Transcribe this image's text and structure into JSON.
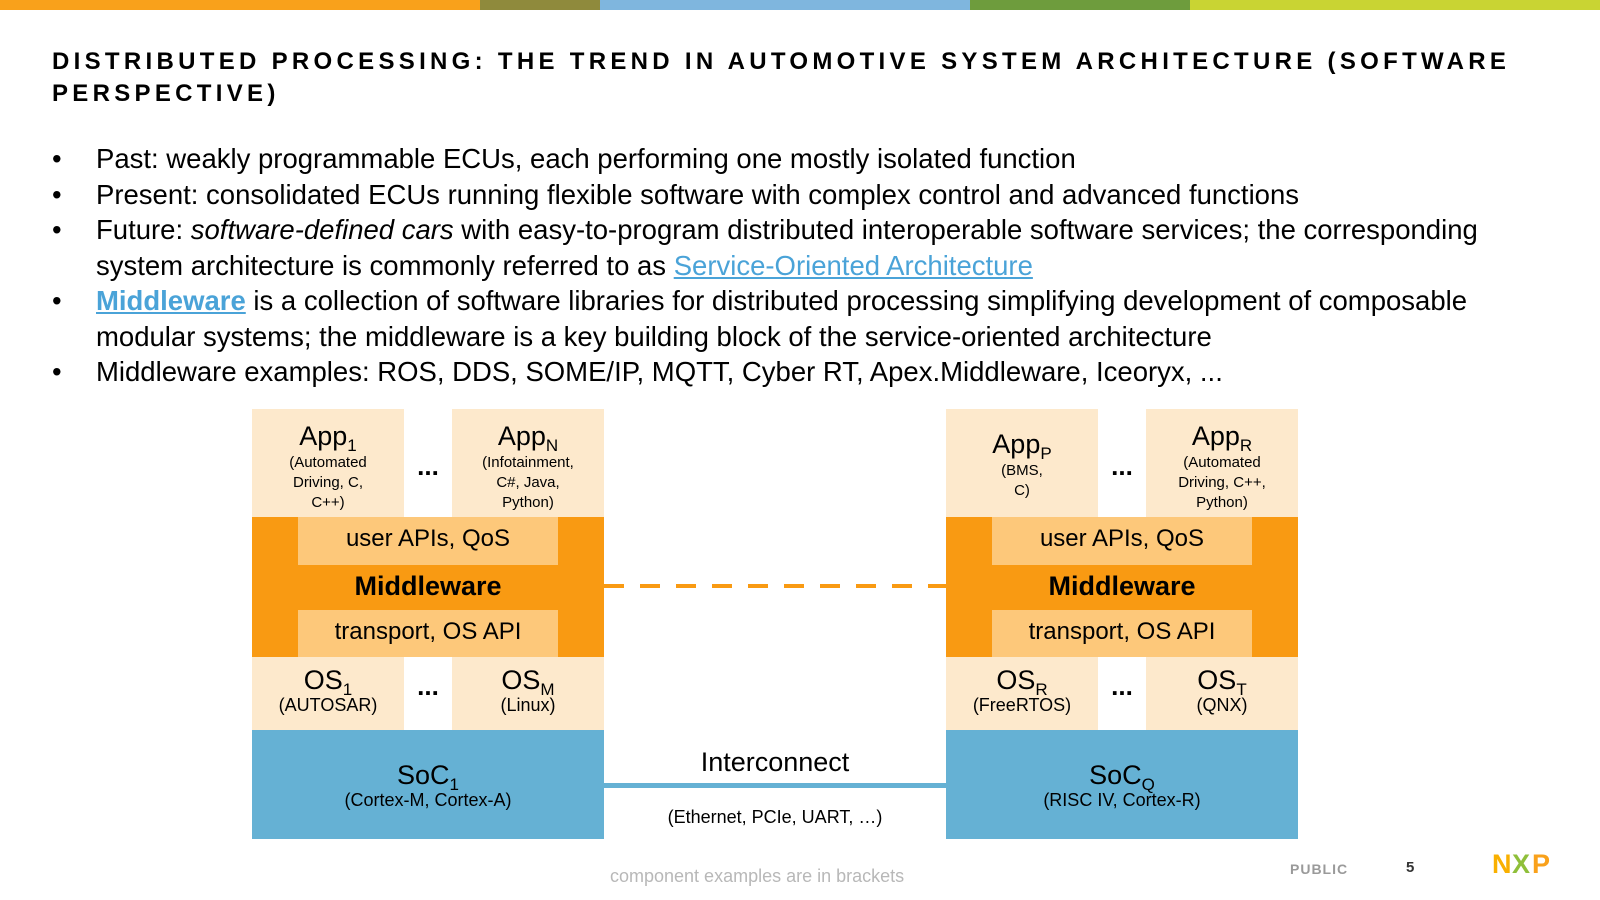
{
  "title": "DISTRIBUTED PROCESSING: THE TREND IN AUTOMOTIVE SYSTEM ARCHITECTURE (SOFTWARE PERSPECTIVE)",
  "bullets": {
    "b1": "Past: weakly programmable ECUs, each performing one mostly isolated function",
    "b2": "Present: consolidated ECUs running flexible software with complex control and advanced functions",
    "b3_pre": "Future: ",
    "b3_italic": "software-defined cars",
    "b3_mid": " with easy-to-program distributed interoperable software services; the corresponding system architecture is commonly referred to as ",
    "b3_link": "Service-Oriented Architecture",
    "b4_link": "Middleware",
    "b4_rest": " is a collection of software libraries for distributed processing simplifying development of composable modular systems; the middleware is a key building block of the service-oriented architecture",
    "b5": "Middleware examples: ROS, DDS, SOME/IP, MQTT, Cyber RT, Apex.Middleware, Iceoryx, ..."
  },
  "bullet_char": "•",
  "left": {
    "app1": {
      "name": "App",
      "sub": "1",
      "desc": "(Automated Driving, C, C++)"
    },
    "app2": {
      "name": "App",
      "sub": "N",
      "desc": "(Infotainment, C#, Java, Python)"
    },
    "dots": "...",
    "api_top": "user APIs, QoS",
    "middleware": "Middleware",
    "api_bottom": "transport, OS API",
    "os1": {
      "name": "OS",
      "sub": "1",
      "desc": "(AUTOSAR)"
    },
    "os2": {
      "name": "OS",
      "sub": "M",
      "desc": "(Linux)"
    },
    "soc": {
      "name": "SoC",
      "sub": "1",
      "desc": "(Cortex-M, Cortex-A)"
    }
  },
  "right": {
    "app1": {
      "name": "App",
      "sub": "P",
      "desc": "(BMS, C)"
    },
    "app2": {
      "name": "App",
      "sub": "R",
      "desc": "(Automated Driving, C++, Python)"
    },
    "dots": "...",
    "api_top": "user APIs, QoS",
    "middleware": "Middleware",
    "api_bottom": "transport, OS API",
    "os1": {
      "name": "OS",
      "sub": "R",
      "desc": "(FreeRTOS)"
    },
    "os2": {
      "name": "OS",
      "sub": "T",
      "desc": "(QNX)"
    },
    "soc": {
      "name": "SoC",
      "sub": "Q",
      "desc": "(RISC IV, Cortex-R)"
    }
  },
  "interconnect": {
    "label": "Interconnect",
    "desc": "(Ethernet, PCIe, UART, …)"
  },
  "footer": {
    "note": "component examples are in brackets",
    "classification": "PUBLIC",
    "page": "5",
    "logo_text": "NXP"
  },
  "colors": {
    "cream": "#fde9cc",
    "orange": "#f99a12",
    "light_orange": "#fdc87a",
    "blue": "#65b1d4",
    "link": "#4aa3d8",
    "topbar": [
      "#f9a11b",
      "#8f8a3c",
      "#7fb6de",
      "#6e9c3d",
      "#c9d433"
    ]
  }
}
